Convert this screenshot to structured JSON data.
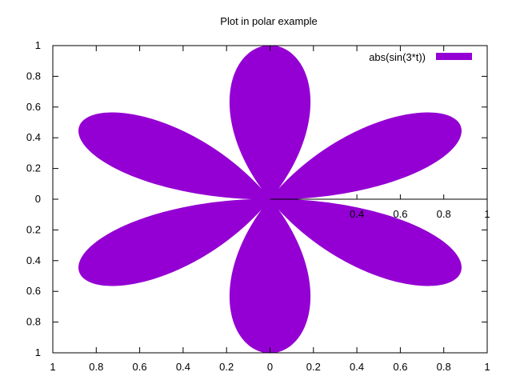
{
  "chart_data": {
    "type": "area",
    "title": "Plot in polar example",
    "xlabel": "",
    "ylabel": "",
    "polar": true,
    "expression": "abs(sin(3*t))",
    "t_range": [
      0,
      6.2832
    ],
    "xlim": [
      -1,
      1
    ],
    "ylim": [
      -1,
      1
    ],
    "x_ticks": [
      -1,
      -0.8,
      -0.6,
      -0.4,
      -0.2,
      0,
      0.2,
      0.4,
      0.6,
      0.8,
      1
    ],
    "y_ticks": [
      -1,
      -0.8,
      -0.6,
      -0.4,
      -0.2,
      0,
      0.2,
      0.4,
      0.6,
      0.8,
      1
    ],
    "x_tick_labels": [
      "1",
      "0.8",
      "0.6",
      "0.4",
      "0.2",
      "0",
      "0.2",
      "0.4",
      "0.6",
      "0.8",
      "1"
    ],
    "y_tick_labels": [
      "1",
      "0.8",
      "0.6",
      "0.4",
      "0.2",
      "0",
      "0.2",
      "0.4",
      "0.6",
      "0.8",
      "1"
    ],
    "center_axis_tick_labels": [
      "0.4",
      "0.6",
      "0.8",
      "1"
    ],
    "center_axis_ticks": [
      0.4,
      0.6,
      0.8,
      1
    ],
    "legend_position": "top-right",
    "grid": false,
    "series": [
      {
        "name": "abs(sin(3*t))",
        "color": "#9400d3",
        "fill": true
      }
    ]
  }
}
